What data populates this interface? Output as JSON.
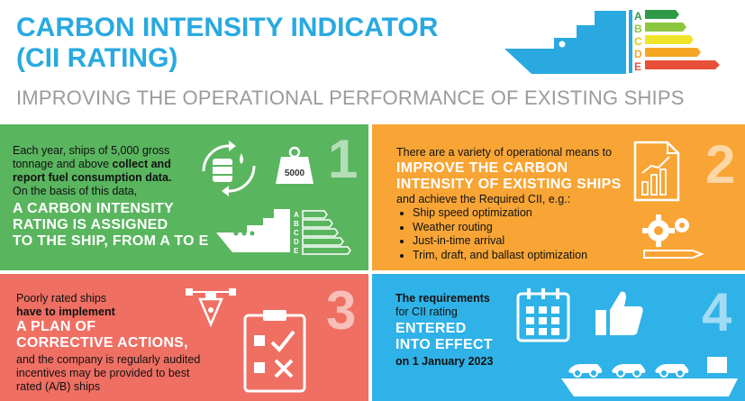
{
  "header": {
    "title_line1": "CARBON INTENSITY INDICATOR",
    "title_line2": "(CII RATING)",
    "subtitle": "IMPROVING THE OPERATIONAL PERFORMANCE OF EXISTING SHIPS",
    "rating_letters": [
      "A",
      "B",
      "C",
      "D",
      "E"
    ],
    "rating_colors": [
      "#2e9a47",
      "#8cc63f",
      "#f0e52a",
      "#f5a623",
      "#e8503a"
    ]
  },
  "panel1": {
    "number": "1",
    "text_a": "Each year, ",
    "text_b": "ships of 5,000 gross tonnage and above ",
    "text_c": "collect and report fuel consumption data.",
    "text_d": "On the basis of this data,",
    "big_1": "A CARBON INTENSITY",
    "big_2": "RATING IS ASSIGNED",
    "big_3": "TO THE SHIP, FROM A TO E",
    "weight_label": "5000",
    "ship_letters": [
      "A",
      "B",
      "C",
      "D",
      "E"
    ],
    "color": "#5ab55f"
  },
  "panel2": {
    "number": "2",
    "intro": "There are a variety of operational means to",
    "big_1": "IMPROVE THE CARBON",
    "big_2": "INTENSITY OF EXISTING SHIPS",
    "after": "and achieve the Required CII, e.g.:",
    "means": [
      "Ship speed optimization",
      "Weather routing",
      "Just-in-time arrival",
      "Trim, draft, and ballast optimization"
    ],
    "color": "#f8a535"
  },
  "panel3": {
    "number": "3",
    "line_1": "Poorly rated ships",
    "line_2": "have to implement",
    "big_1": "A PLAN OF",
    "big_2": "CORRECTIVE ACTIONS,",
    "line_3": "and the company is regularly audited",
    "line_4": "incentives may be provided to best",
    "line_5": "rated (A/B) ships",
    "color": "#ef6f63"
  },
  "panel4": {
    "number": "4",
    "line_1": "The requirements",
    "line_2": "for CII rating",
    "big_1": "ENTERED",
    "big_2": "INTO EFFECT",
    "line_3": "on 1 January 2023",
    "color": "#2fb2e7"
  }
}
